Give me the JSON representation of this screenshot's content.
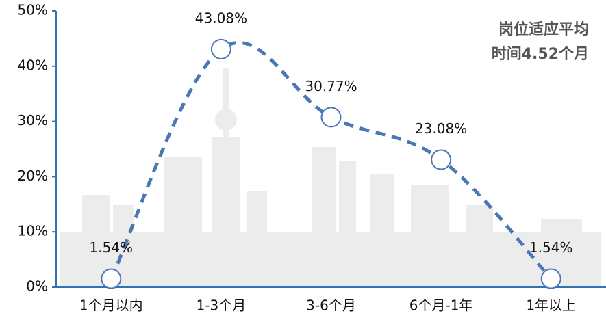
{
  "chart_data": {
    "type": "line",
    "annotation": [
      "岗位适应平均",
      "时间4.52个月"
    ],
    "categories": [
      "1个月以内",
      "1-3个月",
      "3-6个月",
      "6个月-1年",
      "1年以上"
    ],
    "values": [
      1.54,
      43.08,
      30.77,
      23.08,
      1.54
    ],
    "value_labels": [
      "1.54%",
      "43.08%",
      "30.77%",
      "23.08%",
      "1.54%"
    ],
    "color": "#4a78b5",
    "ylim": [
      0,
      50
    ],
    "yticks": [
      {
        "value": 0,
        "label": "0%"
      },
      {
        "value": 10,
        "label": "10%"
      },
      {
        "value": 20,
        "label": "20%"
      },
      {
        "value": 30,
        "label": "30%"
      },
      {
        "value": 40,
        "label": "40%"
      },
      {
        "value": 50,
        "label": "50%"
      }
    ]
  }
}
